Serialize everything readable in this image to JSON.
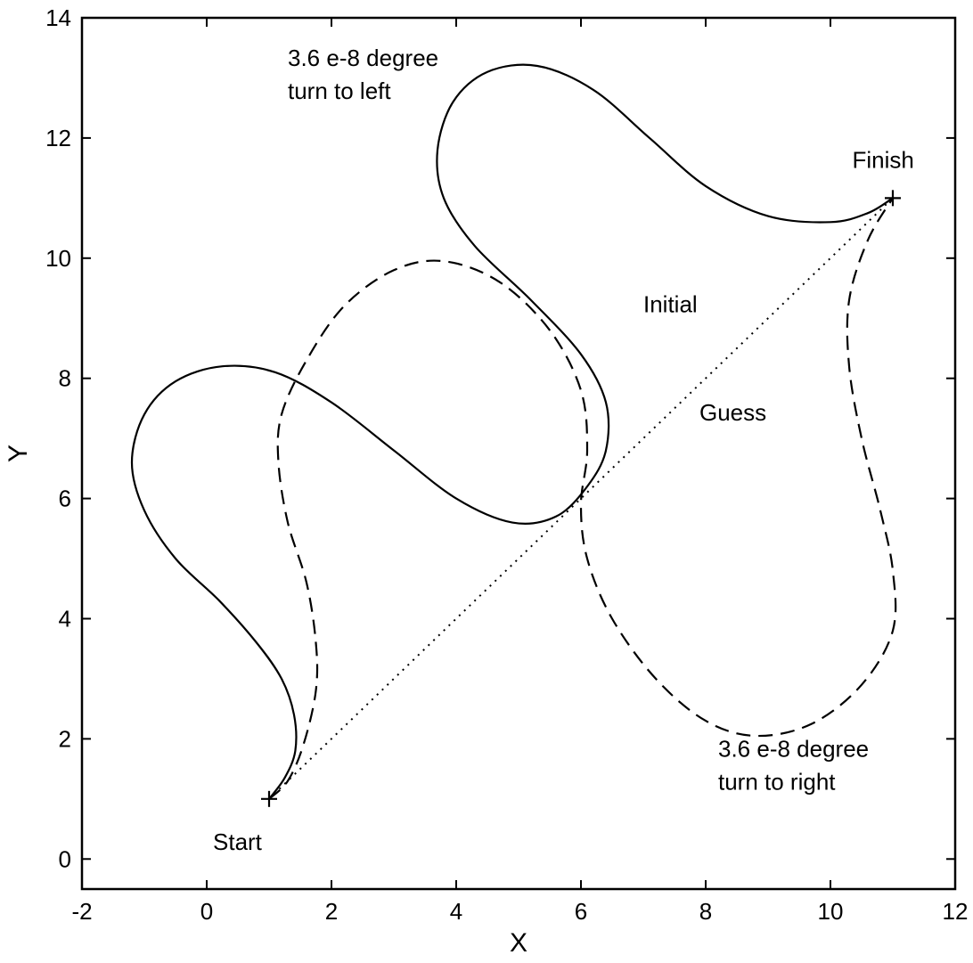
{
  "chart_data": {
    "type": "line",
    "title": "",
    "xlabel": "X",
    "ylabel": "Y",
    "xlim": [
      -2,
      12
    ],
    "ylim": [
      -0.5,
      14
    ],
    "xticks": [
      -2,
      0,
      2,
      4,
      6,
      8,
      10,
      12
    ],
    "yticks": [
      0,
      2,
      4,
      6,
      8,
      10,
      12,
      14
    ],
    "grid": false,
    "series": [
      {
        "style": "solid",
        "color": "#000000",
        "points": [
          [
            1.0,
            1.0
          ],
          [
            1.25,
            1.35
          ],
          [
            1.42,
            1.8
          ],
          [
            1.4,
            2.4
          ],
          [
            1.2,
            3.0
          ],
          [
            0.8,
            3.6
          ],
          [
            0.2,
            4.3
          ],
          [
            -0.5,
            5.0
          ],
          [
            -1.0,
            5.8
          ],
          [
            -1.2,
            6.6
          ],
          [
            -1.0,
            7.4
          ],
          [
            -0.5,
            7.95
          ],
          [
            0.25,
            8.2
          ],
          [
            1.1,
            8.1
          ],
          [
            2.0,
            7.6
          ],
          [
            3.0,
            6.8
          ],
          [
            4.0,
            6.0
          ],
          [
            4.9,
            5.6
          ],
          [
            5.6,
            5.7
          ],
          [
            6.1,
            6.2
          ],
          [
            6.4,
            6.8
          ],
          [
            6.4,
            7.6
          ],
          [
            6.0,
            8.4
          ],
          [
            5.2,
            9.3
          ],
          [
            4.3,
            10.2
          ],
          [
            3.8,
            11.0
          ],
          [
            3.7,
            11.8
          ],
          [
            3.95,
            12.6
          ],
          [
            4.5,
            13.1
          ],
          [
            5.3,
            13.2
          ],
          [
            6.2,
            12.8
          ],
          [
            7.1,
            12.0
          ],
          [
            8.0,
            11.2
          ],
          [
            9.0,
            10.7
          ],
          [
            10.0,
            10.6
          ],
          [
            10.6,
            10.75
          ],
          [
            11.0,
            11.0
          ]
        ]
      },
      {
        "style": "dashed",
        "color": "#000000",
        "points": [
          [
            1.0,
            1.0
          ],
          [
            1.3,
            1.3
          ],
          [
            1.55,
            1.9
          ],
          [
            1.75,
            2.8
          ],
          [
            1.75,
            3.6
          ],
          [
            1.6,
            4.6
          ],
          [
            1.3,
            5.6
          ],
          [
            1.15,
            6.6
          ],
          [
            1.2,
            7.4
          ],
          [
            1.6,
            8.3
          ],
          [
            2.2,
            9.2
          ],
          [
            3.0,
            9.8
          ],
          [
            3.8,
            9.95
          ],
          [
            4.7,
            9.6
          ],
          [
            5.5,
            8.8
          ],
          [
            6.0,
            7.8
          ],
          [
            6.1,
            6.8
          ],
          [
            6.0,
            5.9
          ],
          [
            6.1,
            5.0
          ],
          [
            6.5,
            4.0
          ],
          [
            7.2,
            3.0
          ],
          [
            8.0,
            2.3
          ],
          [
            8.8,
            2.05
          ],
          [
            9.7,
            2.25
          ],
          [
            10.5,
            2.9
          ],
          [
            11.0,
            3.8
          ],
          [
            11.0,
            4.8
          ],
          [
            10.8,
            5.8
          ],
          [
            10.5,
            7.0
          ],
          [
            10.3,
            8.2
          ],
          [
            10.3,
            9.3
          ],
          [
            10.6,
            10.3
          ],
          [
            11.0,
            11.0
          ]
        ]
      },
      {
        "style": "dotted",
        "color": "#000000",
        "points": [
          [
            1.0,
            1.0
          ],
          [
            11.0,
            11.0
          ]
        ]
      }
    ],
    "markers": [
      {
        "x": 1,
        "y": 1,
        "symbol": "+"
      },
      {
        "x": 11,
        "y": 11,
        "symbol": "+"
      }
    ],
    "annotations": [
      {
        "text": "3.6 e-8 degree",
        "x": 1.3,
        "y": 13.2
      },
      {
        "text": "turn to left",
        "x": 1.3,
        "y": 12.65
      },
      {
        "text": "Finish",
        "x": 10.35,
        "y": 11.5
      },
      {
        "text": "Initial",
        "x": 7.0,
        "y": 9.1
      },
      {
        "text": "Guess",
        "x": 7.9,
        "y": 7.3
      },
      {
        "text": "3.6 e-8 degree",
        "x": 8.2,
        "y": 1.7
      },
      {
        "text": "turn to right",
        "x": 8.2,
        "y": 1.15
      },
      {
        "text": "Start",
        "x": 0.1,
        "y": 0.15
      }
    ]
  }
}
